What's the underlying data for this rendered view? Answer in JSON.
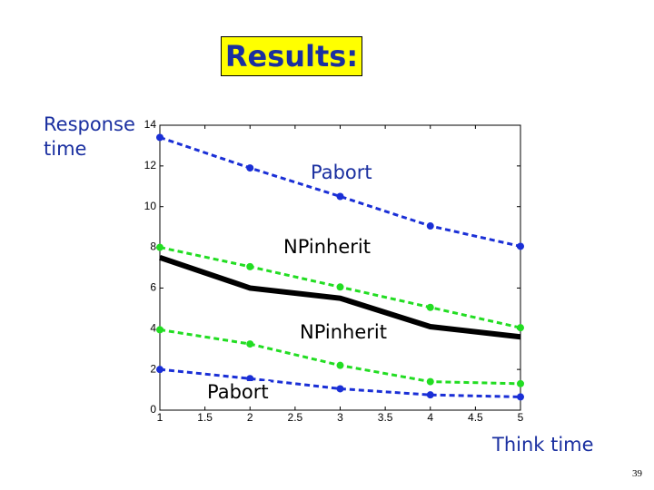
{
  "chart_data": {
    "type": "line",
    "title": "Results:",
    "y_label": "Response time",
    "x_label": "Think time",
    "page_number": "39",
    "x": [
      1,
      2,
      3,
      4,
      5
    ],
    "series": [
      {
        "color": "#1a2fd6",
        "dashed": true,
        "values": [
          13.4,
          11.9,
          10.5,
          9.05,
          8.05
        ]
      },
      {
        "color": "#22dd22",
        "dashed": true,
        "values": [
          8,
          7.05,
          6.05,
          5.05,
          4.05
        ]
      },
      {
        "color": "#000000",
        "dashed": false,
        "values": [
          7.5,
          6,
          5.5,
          4.1,
          3.6
        ]
      },
      {
        "color": "#22dd22",
        "dashed": true,
        "values": [
          3.95,
          3.25,
          2.2,
          1.4,
          1.3
        ]
      },
      {
        "color": "#1a2fd6",
        "dashed": true,
        "values": [
          2,
          1.55,
          1.05,
          0.75,
          0.65
        ]
      }
    ],
    "annotations": [
      "Pabort",
      "NPinherit",
      "NPinherit",
      "Pabort"
    ],
    "xlim": [
      1,
      5
    ],
    "xticks": [
      1,
      1.5,
      2,
      2.5,
      3,
      3.5,
      4,
      4.5,
      5
    ],
    "ylim": [
      0,
      14
    ],
    "yticks": [
      0,
      2,
      4,
      6,
      8,
      10,
      12,
      14
    ]
  }
}
